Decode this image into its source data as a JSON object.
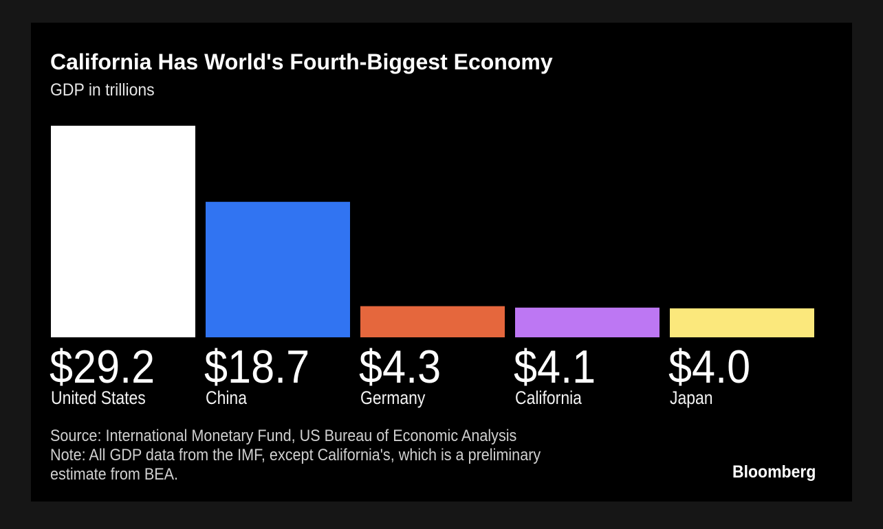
{
  "chart_data": {
    "type": "bar",
    "title": "California Has World's Fourth-Biggest Economy",
    "subtitle": "GDP in trillions",
    "categories": [
      "United States",
      "China",
      "Germany",
      "California",
      "Japan"
    ],
    "values": [
      29.2,
      18.7,
      4.3,
      4.1,
      4.0
    ],
    "value_labels": [
      "$29.2",
      "$18.7",
      "$4.3",
      "$4.1",
      "$4.0"
    ],
    "colors": [
      "#ffffff",
      "#3174f2",
      "#e5673d",
      "#bd77f3",
      "#fbe87c"
    ],
    "ylim": [
      0,
      29.2
    ],
    "grid": false,
    "xlabel": "",
    "ylabel": ""
  },
  "source": "Source: International Monetary Fund, US Bureau of Economic Analysis",
  "note_line1": "Note: All GDP data from the IMF, except California's, which is a preliminary",
  "note_line2": "estimate from BEA.",
  "logo": "Bloomberg"
}
